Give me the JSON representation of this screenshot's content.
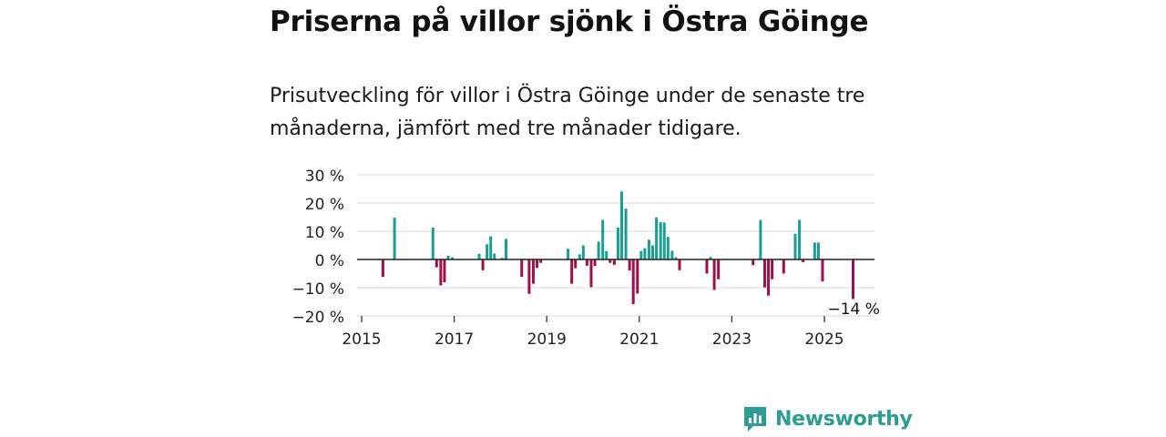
{
  "title": "Priserna på villor sjönk i Östra Göinge",
  "subtitle": "Prisutveckling för villor i Östra Göinge under de senaste tre månaderna, jämfört med tre månader tidigare.",
  "brand": {
    "name": "Newsworthy",
    "icon": "bar-chart-speech-icon"
  },
  "colors": {
    "positive": "#1a9e92",
    "negative": "#a0104a",
    "grid": "#d9d9d9",
    "zero": "#222222",
    "brand": "#2c9c94"
  },
  "chart_data": {
    "type": "bar",
    "x_unit": "year (decimal)",
    "ylim": [
      -20,
      30
    ],
    "xlim": [
      2015,
      2026
    ],
    "y_ticks": [
      {
        "value": 30,
        "label": "30 %"
      },
      {
        "value": 20,
        "label": "20 %"
      },
      {
        "value": 10,
        "label": "10 %"
      },
      {
        "value": 0,
        "label": "0 %"
      },
      {
        "value": -10,
        "label": "−10 %"
      },
      {
        "value": -20,
        "label": "−20 %"
      }
    ],
    "x_ticks": [
      {
        "value": 2015,
        "label": "2015"
      },
      {
        "value": 2017,
        "label": "2017"
      },
      {
        "value": 2019,
        "label": "2019"
      },
      {
        "value": 2021,
        "label": "2021"
      },
      {
        "value": 2023,
        "label": "2023"
      },
      {
        "value": 2025,
        "label": "2025"
      }
    ],
    "grid": true,
    "last_label": "−14 %",
    "points": [
      {
        "x": 2015.46,
        "y": -6.2
      },
      {
        "x": 2015.71,
        "y": 14.8
      },
      {
        "x": 2016.54,
        "y": 11.3
      },
      {
        "x": 2016.62,
        "y": -2.8
      },
      {
        "x": 2016.71,
        "y": -9.2
      },
      {
        "x": 2016.79,
        "y": -8.1
      },
      {
        "x": 2016.87,
        "y": 1.3
      },
      {
        "x": 2016.96,
        "y": 0.8
      },
      {
        "x": 2017.54,
        "y": 2.0
      },
      {
        "x": 2017.62,
        "y": -3.8
      },
      {
        "x": 2017.71,
        "y": 5.4
      },
      {
        "x": 2017.79,
        "y": 8.2
      },
      {
        "x": 2017.87,
        "y": 2.1
      },
      {
        "x": 2018.04,
        "y": 0.6
      },
      {
        "x": 2018.12,
        "y": 7.3
      },
      {
        "x": 2018.46,
        "y": -6.2
      },
      {
        "x": 2018.62,
        "y": -12.2
      },
      {
        "x": 2018.71,
        "y": -8.6
      },
      {
        "x": 2018.79,
        "y": -3.0
      },
      {
        "x": 2018.87,
        "y": -1.2
      },
      {
        "x": 2019.46,
        "y": 3.8
      },
      {
        "x": 2019.54,
        "y": -8.6
      },
      {
        "x": 2019.62,
        "y": -3.1
      },
      {
        "x": 2019.71,
        "y": 1.8
      },
      {
        "x": 2019.79,
        "y": 5.0
      },
      {
        "x": 2019.87,
        "y": -2.2
      },
      {
        "x": 2019.96,
        "y": -9.8
      },
      {
        "x": 2020.04,
        "y": -2.3
      },
      {
        "x": 2020.12,
        "y": 6.3
      },
      {
        "x": 2020.21,
        "y": 14.0
      },
      {
        "x": 2020.29,
        "y": 3.0
      },
      {
        "x": 2020.37,
        "y": -1.2
      },
      {
        "x": 2020.46,
        "y": -1.9
      },
      {
        "x": 2020.54,
        "y": 11.3
      },
      {
        "x": 2020.62,
        "y": 24.1
      },
      {
        "x": 2020.71,
        "y": 18.0
      },
      {
        "x": 2020.79,
        "y": -3.9
      },
      {
        "x": 2020.87,
        "y": -15.8
      },
      {
        "x": 2020.96,
        "y": -12.1
      },
      {
        "x": 2021.04,
        "y": 3.0
      },
      {
        "x": 2021.12,
        "y": 4.0
      },
      {
        "x": 2021.21,
        "y": 7.0
      },
      {
        "x": 2021.29,
        "y": 5.0
      },
      {
        "x": 2021.37,
        "y": 14.9
      },
      {
        "x": 2021.46,
        "y": 13.2
      },
      {
        "x": 2021.54,
        "y": 13.1
      },
      {
        "x": 2021.62,
        "y": 8.0
      },
      {
        "x": 2021.71,
        "y": 3.1
      },
      {
        "x": 2021.79,
        "y": 0.8
      },
      {
        "x": 2021.87,
        "y": -3.8
      },
      {
        "x": 2022.46,
        "y": -5.0
      },
      {
        "x": 2022.54,
        "y": 0.9
      },
      {
        "x": 2022.62,
        "y": -10.8
      },
      {
        "x": 2022.71,
        "y": -7.0
      },
      {
        "x": 2023.46,
        "y": -2.0
      },
      {
        "x": 2023.62,
        "y": 14.0
      },
      {
        "x": 2023.71,
        "y": -9.9
      },
      {
        "x": 2023.79,
        "y": -12.8
      },
      {
        "x": 2023.87,
        "y": -7.0
      },
      {
        "x": 2024.12,
        "y": -5.0
      },
      {
        "x": 2024.37,
        "y": 9.1
      },
      {
        "x": 2024.46,
        "y": 14.0
      },
      {
        "x": 2024.54,
        "y": -1.0
      },
      {
        "x": 2024.79,
        "y": 6.0
      },
      {
        "x": 2024.87,
        "y": 6.0
      },
      {
        "x": 2024.96,
        "y": -7.8
      },
      {
        "x": 2025.62,
        "y": -14.0
      }
    ]
  }
}
